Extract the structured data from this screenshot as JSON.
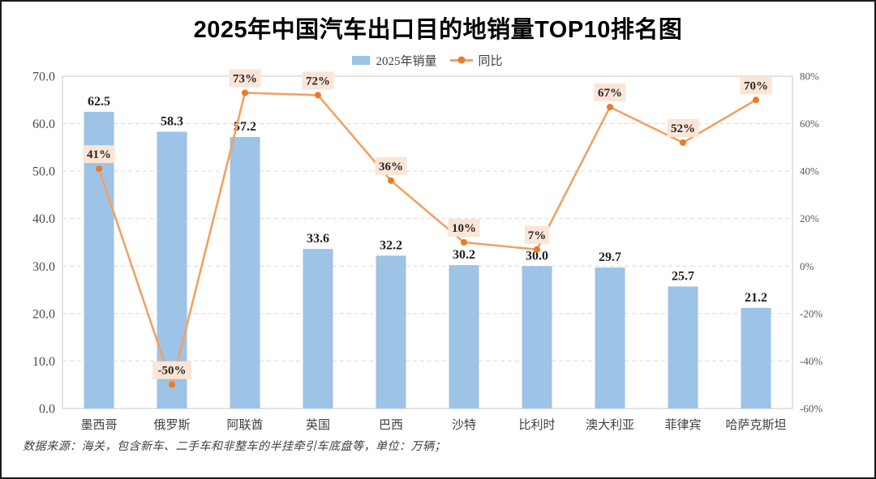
{
  "title": "2025年中国汽车出口目的地销量TOP10排名图",
  "legend": {
    "bar_label": "2025年销量",
    "line_label": "同比"
  },
  "footer": "数据来源：海关，包含新车、二手车和非整车的半挂牵引车底盘等，单位：万辆；",
  "colors": {
    "bar": "#9DC3E6",
    "line": "#F1A164",
    "marker": "#E97B28",
    "pct_label_bg": "#FBE5D6",
    "grid": "#D9D9D9",
    "plot_border": "#C9C9C9"
  },
  "chart_data": {
    "type": "bar",
    "subtype": "bar+line combo, dual axis",
    "title": "2025年中国汽车出口目的地销量TOP10排名图",
    "categories": [
      "墨西哥",
      "俄罗斯",
      "阿联酋",
      "英国",
      "巴西",
      "沙特",
      "比利时",
      "澳大利亚",
      "菲律宾",
      "哈萨克斯坦"
    ],
    "series": [
      {
        "name": "2025年销量",
        "type": "bar",
        "axis": "left",
        "values": [
          62.5,
          58.3,
          57.2,
          33.6,
          32.2,
          30.2,
          30.0,
          29.7,
          25.7,
          21.2
        ],
        "labels": [
          "62.5",
          "58.3",
          "57.2",
          "33.6",
          "32.2",
          "30.2",
          "30.0",
          "29.7",
          "25.7",
          "21.2"
        ]
      },
      {
        "name": "同比",
        "type": "line",
        "axis": "right",
        "values": [
          41,
          -50,
          73,
          72,
          36,
          10,
          7,
          67,
          52,
          70
        ],
        "labels": [
          "41%",
          "-50%",
          "73%",
          "72%",
          "36%",
          "10%",
          "7%",
          "67%",
          "52%",
          "70%"
        ]
      }
    ],
    "left_axis": {
      "min": 0,
      "max": 70,
      "step": 10,
      "ticks": [
        "0.0",
        "10.0",
        "20.0",
        "30.0",
        "40.0",
        "50.0",
        "60.0",
        "70.0"
      ]
    },
    "right_axis": {
      "min": -60,
      "max": 80,
      "step": 20,
      "ticks": [
        "-60%",
        "-40%",
        "-20%",
        "0%",
        "20%",
        "40%",
        "60%",
        "80%"
      ]
    },
    "grid": true,
    "legend_position": "top",
    "unit": "万辆"
  }
}
